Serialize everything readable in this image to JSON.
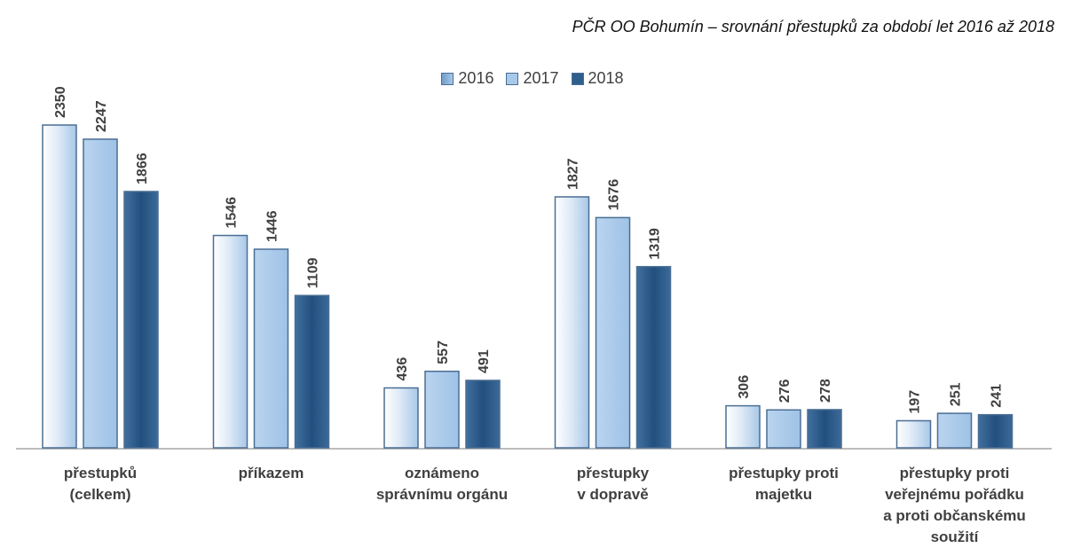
{
  "chart_data": {
    "type": "bar",
    "title": "PČR OO Bohumín – srovnání přestupků za období let 2016 až 2018",
    "categories": [
      "přestupků\n(celkem)",
      "příkazem",
      "oznámeno\nsprávnímu orgánu",
      "přestupky\nv dopravě",
      "přestupky proti\nmajetku",
      "přestupky proti\nveřejnému pořádku\na proti občanskému\nsoužití"
    ],
    "series": [
      {
        "name": "2016",
        "values": [
          2350,
          1546,
          436,
          1827,
          306,
          197
        ]
      },
      {
        "name": "2017",
        "values": [
          2247,
          1446,
          557,
          1676,
          276,
          251
        ]
      },
      {
        "name": "2018",
        "values": [
          1866,
          1109,
          491,
          1319,
          278,
          241
        ]
      }
    ],
    "ylim": [
      0,
      2350
    ],
    "grid": false,
    "legend_position": "top-center",
    "colors": {
      "2016": [
        "#eef5fc",
        "#a9c8e8"
      ],
      "2017": [
        "#a8c9ea",
        "#a8c9ea"
      ],
      "2018": [
        "#2c5a86",
        "#4675a3"
      ],
      "bar_border": "#4a6e94"
    }
  }
}
